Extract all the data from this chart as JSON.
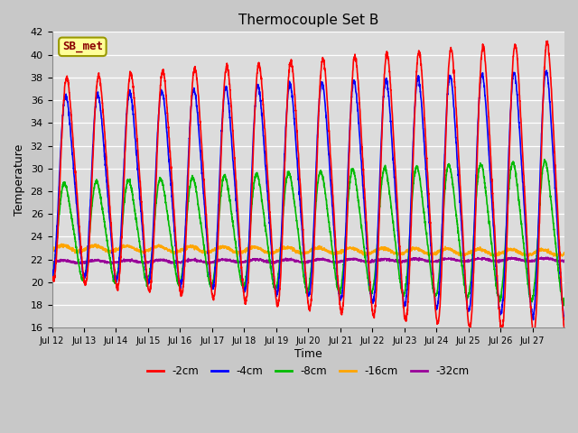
{
  "title": "Thermocouple Set B",
  "xlabel": "Time",
  "ylabel": "Temperature",
  "ylim": [
    16,
    42
  ],
  "yticks": [
    16,
    18,
    20,
    22,
    24,
    26,
    28,
    30,
    32,
    34,
    36,
    38,
    40,
    42
  ],
  "bg_color": "#dcdcdc",
  "fig_bg_color": "#c8c8c8",
  "grid_color": "#ffffff",
  "series": {
    "-2cm": {
      "color": "#ff0000",
      "lw": 1.2
    },
    "-4cm": {
      "color": "#0000ff",
      "lw": 1.2
    },
    "-8cm": {
      "color": "#00bb00",
      "lw": 1.2
    },
    "-16cm": {
      "color": "#ffa500",
      "lw": 1.2
    },
    "-32cm": {
      "color": "#990099",
      "lw": 1.2
    }
  },
  "annotation_text": "SB_met",
  "day_labels": [
    "Jul 12",
    "Jul 13",
    "Jul 14",
    "Jul 15",
    "Jul 16",
    "Jul 17",
    "Jul 18",
    "Jul 19",
    "Jul 20",
    "Jul 21",
    "Jul 22",
    "Jul 23",
    "Jul 24",
    "Jul 25",
    "Jul 26",
    "Jul 27"
  ]
}
